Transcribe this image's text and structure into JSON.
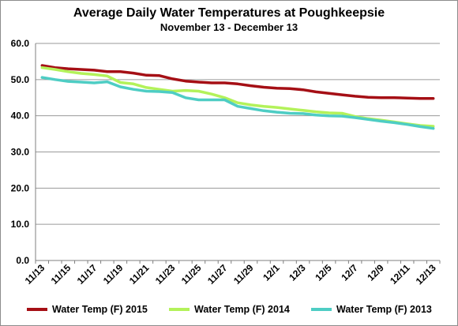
{
  "chart_data": {
    "type": "line",
    "title": "Average Daily Water Temperatures at Poughkeepsie",
    "subtitle": "November 13 - December 13",
    "xlabel": "",
    "ylabel": "",
    "ylim": [
      0,
      60
    ],
    "yticks": [
      "0.0",
      "10.0",
      "20.0",
      "30.0",
      "40.0",
      "50.0",
      "60.0"
    ],
    "grid": true,
    "legend_position": "bottom",
    "x": [
      "11/13",
      "11/14",
      "11/15",
      "11/16",
      "11/17",
      "11/18",
      "11/19",
      "11/20",
      "11/21",
      "11/22",
      "11/23",
      "11/24",
      "11/25",
      "11/26",
      "11/27",
      "11/28",
      "11/29",
      "11/30",
      "12/1",
      "12/2",
      "12/3",
      "12/4",
      "12/5",
      "12/6",
      "12/7",
      "12/8",
      "12/9",
      "12/10",
      "12/11",
      "12/12",
      "12/13"
    ],
    "xtick_labels": [
      "11/13",
      "11/15",
      "11/17",
      "11/19",
      "11/21",
      "11/23",
      "11/25",
      "11/27",
      "11/29",
      "12/1",
      "12/3",
      "12/5",
      "12/7",
      "12/9",
      "12/11",
      "12/13"
    ],
    "series": [
      {
        "name": "Water Temp (F) 2015",
        "color": "#a50f15",
        "values": [
          53.9,
          53.3,
          53.0,
          52.8,
          52.6,
          52.2,
          52.2,
          51.8,
          51.2,
          51.1,
          50.2,
          49.6,
          49.3,
          49.1,
          49.1,
          48.8,
          48.3,
          47.9,
          47.6,
          47.5,
          47.2,
          46.6,
          46.2,
          45.8,
          45.4,
          45.1,
          45.0,
          45.0,
          44.9,
          44.8,
          44.8
        ]
      },
      {
        "name": "Water Temp (F) 2014",
        "color": "#b3f25a",
        "values": [
          53.3,
          52.8,
          52.2,
          51.7,
          51.4,
          51.0,
          49.2,
          48.8,
          47.8,
          47.3,
          46.8,
          47.0,
          46.8,
          46.0,
          45.0,
          43.6,
          43.0,
          42.6,
          42.3,
          41.9,
          41.5,
          41.1,
          40.8,
          40.7,
          39.8,
          39.2,
          38.8,
          38.3,
          37.8,
          37.3,
          37.1
        ]
      },
      {
        "name": "Water Temp (F) 2013",
        "color": "#4ecdc4",
        "values": [
          50.6,
          50.0,
          49.5,
          49.3,
          49.1,
          49.4,
          48.0,
          47.3,
          46.8,
          46.7,
          46.4,
          45.0,
          44.4,
          44.4,
          44.4,
          42.6,
          42.0,
          41.4,
          41.0,
          40.7,
          40.6,
          40.2,
          40.0,
          39.9,
          39.5,
          39.0,
          38.5,
          38.1,
          37.6,
          37.0,
          36.5
        ]
      }
    ]
  }
}
